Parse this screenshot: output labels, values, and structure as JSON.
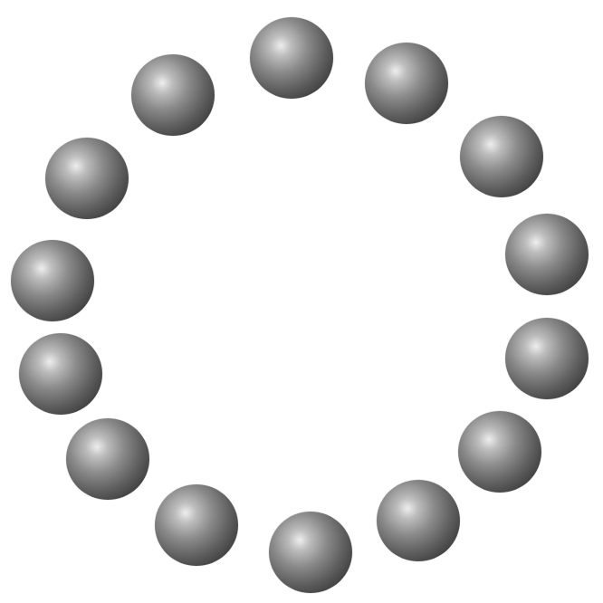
{
  "scene": {
    "subject": "ring of spheres",
    "sphere_count": 14,
    "sphere_color": "#5e5e5e",
    "highlight_color": "#eeeeee",
    "background_color": "#ffffff"
  }
}
